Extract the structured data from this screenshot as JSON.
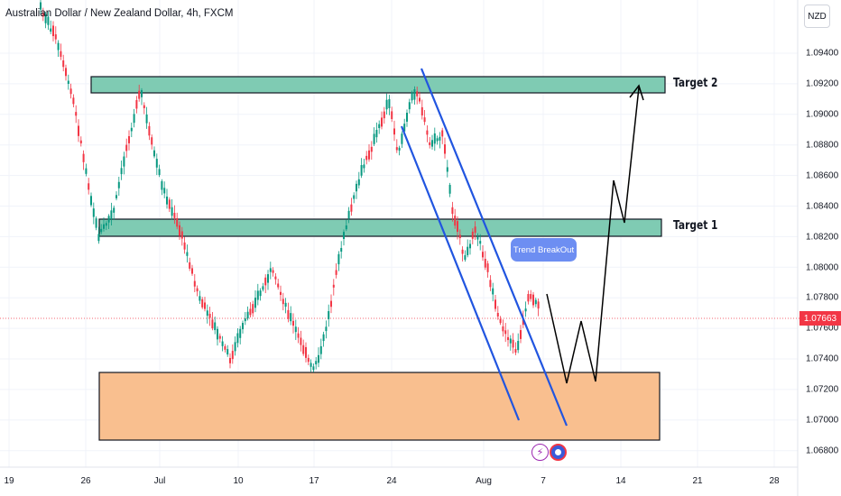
{
  "header": {
    "title": "Australian Dollar / New Zealand Dollar, 4h, FXCM"
  },
  "currency_button": "NZD",
  "price_axis": {
    "labels": [
      "1.09400",
      "1.09200",
      "1.09000",
      "1.08800",
      "1.08600",
      "1.08400",
      "1.08200",
      "1.08000",
      "1.07800",
      "1.07600",
      "1.07400",
      "1.07200",
      "1.07000",
      "1.06800"
    ],
    "current_price": "1.07663"
  },
  "time_axis": {
    "labels": [
      "19",
      "26",
      "Jul",
      "10",
      "17",
      "24",
      "Aug",
      "7",
      "14",
      "21",
      "28"
    ]
  },
  "annotations": {
    "target1": "Target 1",
    "target2": "Target 2",
    "breakout": "Trend BreakOut"
  },
  "colors": {
    "up": "#089981",
    "down": "#f23645",
    "zone_green": "#7fcbb3",
    "zone_orange": "#f9bf8f",
    "channel": "#2155e0",
    "badge": "#6d8ef2"
  },
  "icons": [
    "lightning-icon",
    "australia-flag-icon"
  ]
}
